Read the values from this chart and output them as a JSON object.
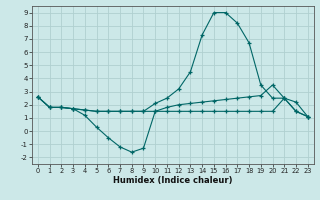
{
  "xlabel": "Humidex (Indice chaleur)",
  "background_color": "#cce8e8",
  "grid_color": "#b0d0d0",
  "line_color": "#006666",
  "xlim": [
    -0.5,
    23.5
  ],
  "ylim": [
    -2.5,
    9.5
  ],
  "xticks": [
    0,
    1,
    2,
    3,
    4,
    5,
    6,
    7,
    8,
    9,
    10,
    11,
    12,
    13,
    14,
    15,
    16,
    17,
    18,
    19,
    20,
    21,
    22,
    23
  ],
  "yticks": [
    -2,
    -1,
    0,
    1,
    2,
    3,
    4,
    5,
    6,
    7,
    8,
    9
  ],
  "line_curve_x": [
    0,
    1,
    2,
    3,
    4,
    5,
    6,
    7,
    8,
    9,
    10,
    11,
    12,
    13,
    14,
    15,
    16,
    17,
    18,
    19,
    20,
    21,
    22,
    23
  ],
  "line_curve_y": [
    2.6,
    1.8,
    1.8,
    1.7,
    1.6,
    1.5,
    1.5,
    1.5,
    1.5,
    1.5,
    2.1,
    2.5,
    3.2,
    4.5,
    7.3,
    9.0,
    9.0,
    8.2,
    6.7,
    3.5,
    2.5,
    2.5,
    1.5,
    1.1
  ],
  "line_low_x": [
    0,
    1,
    2,
    3,
    4,
    5,
    6,
    7,
    8,
    9,
    10,
    11,
    12,
    13,
    14,
    15,
    16,
    17,
    18,
    19,
    20,
    21,
    22,
    23
  ],
  "line_low_y": [
    2.6,
    1.8,
    1.8,
    1.7,
    1.2,
    0.3,
    -0.5,
    -1.2,
    -1.6,
    -1.3,
    1.5,
    1.5,
    1.5,
    1.5,
    1.5,
    1.5,
    1.5,
    1.5,
    1.5,
    1.5,
    1.5,
    2.5,
    1.5,
    1.1
  ],
  "line_flat_x": [
    0,
    1,
    2,
    3,
    4,
    5,
    6,
    7,
    8,
    9,
    10,
    11,
    12,
    13,
    14,
    15,
    16,
    17,
    18,
    19,
    20,
    21,
    22,
    23
  ],
  "line_flat_y": [
    2.6,
    1.8,
    1.8,
    1.7,
    1.6,
    1.5,
    1.5,
    1.5,
    1.5,
    1.5,
    1.5,
    1.8,
    2.0,
    2.1,
    2.2,
    2.3,
    2.4,
    2.5,
    2.6,
    2.7,
    3.5,
    2.5,
    2.2,
    1.1
  ]
}
